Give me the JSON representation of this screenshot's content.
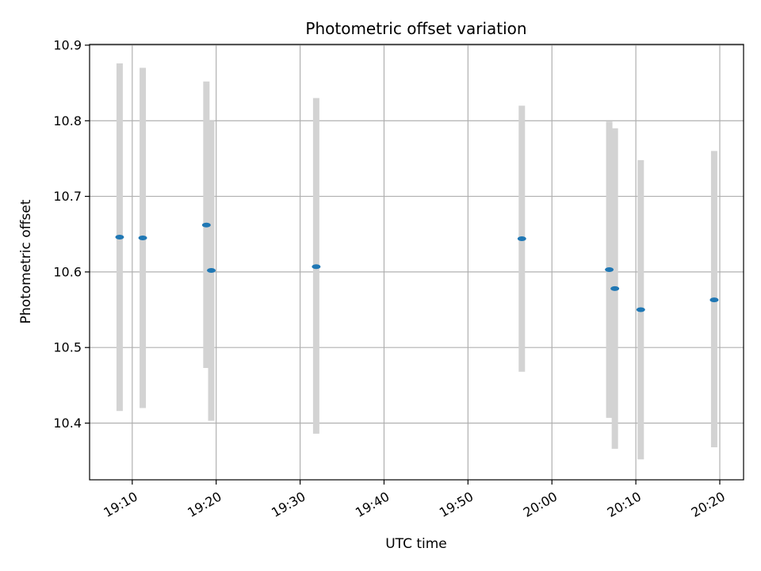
{
  "chart_data": {
    "type": "scatter",
    "title": "Photometric offset variation",
    "xlabel": "UTC time",
    "ylabel": "Photometric offset",
    "grid": true,
    "xlim": [
      "19:04:55",
      "20:22:50"
    ],
    "ylim": [
      10.325,
      10.901
    ],
    "x_ticks": [
      "19:10",
      "19:20",
      "19:30",
      "19:40",
      "19:50",
      "20:00",
      "20:10",
      "20:20"
    ],
    "y_ticks": [
      "10.4",
      "10.5",
      "10.6",
      "10.7",
      "10.8",
      "10.9"
    ],
    "colors": {
      "points": "#1f77b4",
      "errorbars": "#d3d3d3",
      "grid": "#b0b0b0"
    },
    "points": [
      {
        "time": "19:08:30",
        "value": 10.646,
        "low": 10.416,
        "high": 10.876
      },
      {
        "time": "19:11:15",
        "value": 10.645,
        "low": 10.42,
        "high": 10.87
      },
      {
        "time": "19:18:50",
        "value": 10.662,
        "low": 10.473,
        "high": 10.852
      },
      {
        "time": "19:19:25",
        "value": 10.602,
        "low": 10.403,
        "high": 10.8
      },
      {
        "time": "19:31:55",
        "value": 10.607,
        "low": 10.386,
        "high": 10.83
      },
      {
        "time": "19:56:25",
        "value": 10.644,
        "low": 10.468,
        "high": 10.82
      },
      {
        "time": "20:06:50",
        "value": 10.603,
        "low": 10.407,
        "high": 10.799
      },
      {
        "time": "20:07:30",
        "value": 10.578,
        "low": 10.366,
        "high": 10.79
      },
      {
        "time": "20:10:35",
        "value": 10.55,
        "low": 10.352,
        "high": 10.748
      },
      {
        "time": "20:19:20",
        "value": 10.563,
        "low": 10.368,
        "high": 10.76
      }
    ]
  }
}
